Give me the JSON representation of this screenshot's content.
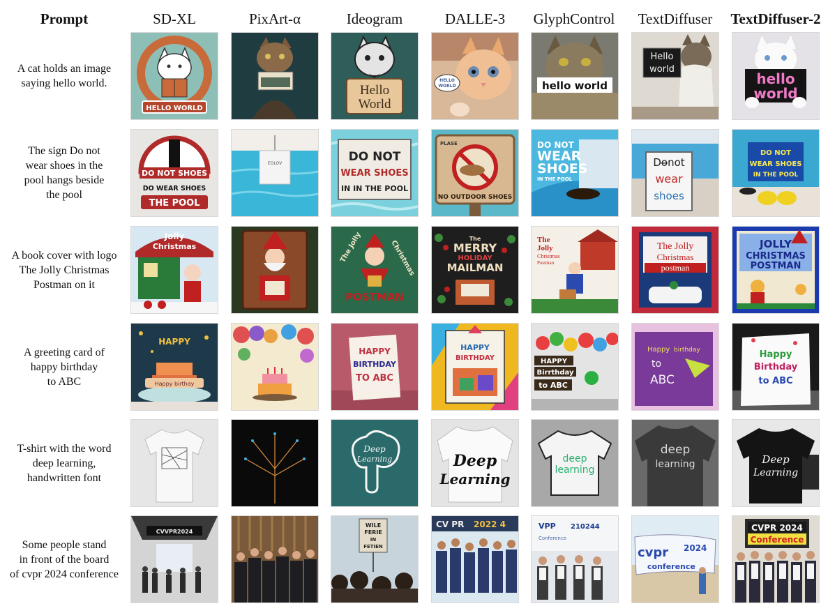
{
  "columns": [
    {
      "label": "Prompt",
      "bold": true
    },
    {
      "label": "SD-XL",
      "bold": false
    },
    {
      "label": "PixArt-α",
      "bold": false
    },
    {
      "label": "Ideogram",
      "bold": false
    },
    {
      "label": "DALLE-3",
      "bold": false
    },
    {
      "label": "GlyphControl",
      "bold": false
    },
    {
      "label": "TextDiffuser",
      "bold": false
    },
    {
      "label": "TextDiffuser-2",
      "bold": true
    }
  ],
  "rows": [
    {
      "prompt_lines": [
        "A cat holds an image",
        "saying hello world."
      ]
    },
    {
      "prompt_lines": [
        "The sign Do not",
        "wear shoes in the",
        "pool hangs beside",
        "the pool"
      ]
    },
    {
      "prompt_lines": [
        "A book cover with logo",
        "The Jolly Christmas",
        "Postman on it"
      ]
    },
    {
      "prompt_lines": [
        "A greeting card of",
        "happy birthday",
        "to ABC"
      ]
    },
    {
      "prompt_lines": [
        "T-shirt with the word",
        "deep learning,",
        "handwritten font"
      ]
    },
    {
      "prompt_lines": [
        "Some people stand",
        "in front of the board",
        "of cvpr 2024 conference"
      ]
    }
  ],
  "image_text": {
    "cat": {
      "sdxl": "HELLO WORLD",
      "ideogram": [
        "Hello",
        "World"
      ],
      "dalle": [
        "HELLO",
        "WORLD"
      ],
      "glyph": "hello world",
      "textdiffuser": [
        "Hello",
        "world"
      ],
      "td2": [
        "hello",
        "world"
      ]
    },
    "pool": {
      "sdxl": [
        "DO NOT SHOES",
        "DO WEAR SHOES",
        "THE POOL"
      ],
      "pixart": "EOLOV",
      "ideogram": [
        "DO NOT",
        "WEAR SHOES",
        "IN IN THE POOL"
      ],
      "dalle": [
        "PLASE",
        "NO OUTDOOR SHOES"
      ],
      "glyph": [
        "DO NOT",
        "WEAR",
        "SHOES",
        "IN THE POOL"
      ],
      "textdiffuser": [
        "Do̶not",
        "wear",
        "shoes"
      ],
      "td2": [
        "DO NOT",
        "WEAR SHOES",
        "IN THE POOL"
      ]
    },
    "book": {
      "sdxl": [
        "Jolly",
        "Christmas"
      ],
      "ideogram": [
        "The Jolly",
        "Christmas",
        "POSTMAN"
      ],
      "dalle": [
        "The",
        "MERRY",
        "HOLIDAY",
        "MAILMAN"
      ],
      "glyph": [
        "The",
        "Jolly",
        "Christmas",
        "Postman"
      ],
      "textdiffuser": [
        "The Jolly",
        "Christmas",
        "postman"
      ],
      "td2": [
        "JOLLY",
        "CHRISTMAS",
        "POSTMAN"
      ]
    },
    "birthday": {
      "sdxl": [
        "HAPPY",
        "Happy birthay"
      ],
      "ideogram": [
        "HAPPY",
        "BIRTHDAY",
        "TO ABC"
      ],
      "dalle": [
        "HAPPY",
        "BIRTHDAY"
      ],
      "glyph": [
        "HAPPY",
        "Birrthday",
        "to ABC"
      ],
      "textdiffuser": [
        "Happy",
        "birthday",
        "to",
        "ABC"
      ],
      "td2": [
        "Happy",
        "Birthday",
        "to ABC"
      ]
    },
    "tshirt": {
      "ideogram": [
        "Deep",
        "Learning"
      ],
      "dalle": [
        "Deep",
        "Learning"
      ],
      "glyph": [
        "deep",
        "learning"
      ],
      "textdiffuser": [
        "deep",
        "learning"
      ],
      "td2": [
        "Deep",
        "Learning"
      ]
    },
    "cvpr": {
      "sdxl": "CVVPR2024",
      "ideogram": [
        "WILE",
        "FERIE",
        "IN",
        "FETIEN"
      ],
      "dalle": [
        "CV PR",
        "2022 4"
      ],
      "glyph": [
        "VPP",
        "210244",
        "Conference"
      ],
      "textdiffuser": [
        "cvpr",
        "2024",
        "conference"
      ],
      "td2": [
        "CVPR 2024",
        "Conference"
      ]
    }
  }
}
